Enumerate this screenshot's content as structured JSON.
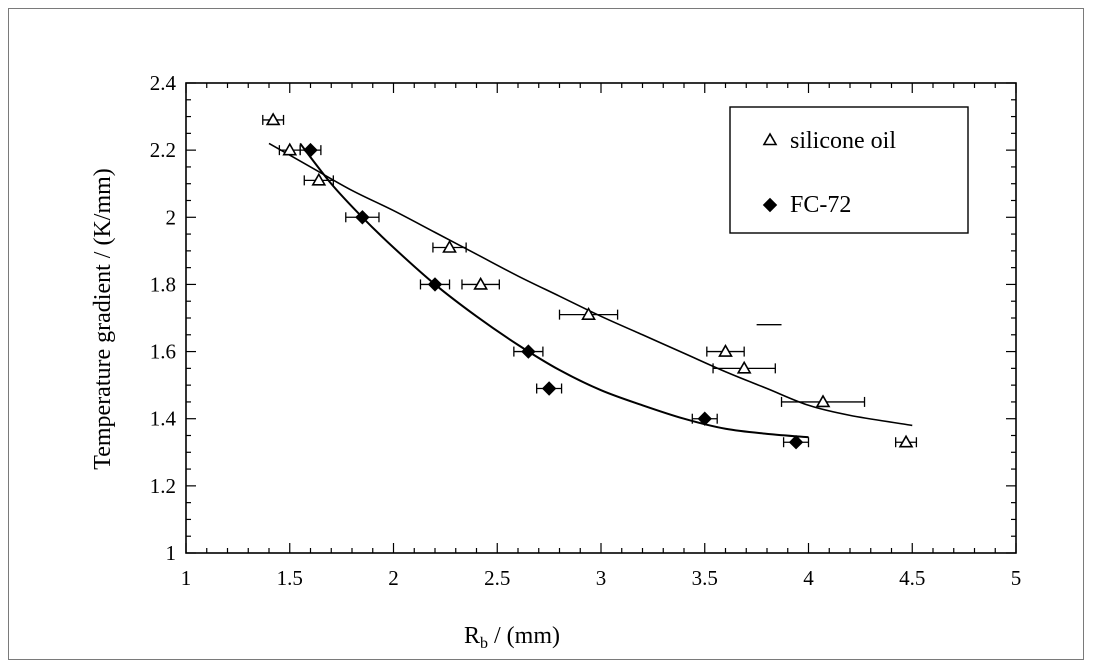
{
  "chart_data": {
    "type": "scatter",
    "title": "",
    "xlabel": "R",
    "xlabel_sub": "b",
    "xlabel_suffix": " / (mm)",
    "ylabel": "Temperature gradient / (K/mm)",
    "xlim": [
      1,
      5
    ],
    "ylim": [
      1,
      2.4
    ],
    "x_ticks": [
      1,
      1.5,
      2,
      2.5,
      3,
      3.5,
      4,
      4.5,
      5
    ],
    "x_tick_labels": [
      "1",
      "1.5",
      "2",
      "2.5",
      "3",
      "3.5",
      "4",
      "4.5",
      "5"
    ],
    "y_ticks": [
      1,
      1.2,
      1.4,
      1.6,
      1.8,
      2,
      2.2,
      2.4
    ],
    "y_tick_labels": [
      "1",
      "1.2",
      "1.4",
      "1.6",
      "1.8",
      "2",
      "2.2",
      "2.4"
    ],
    "grid": false,
    "legend_position": "top-right",
    "series": [
      {
        "name": "silicone oil",
        "marker": "open-triangle",
        "points": [
          {
            "x": 1.42,
            "y": 2.29,
            "xerr": 0.05
          },
          {
            "x": 1.5,
            "y": 2.2,
            "xerr": 0.05
          },
          {
            "x": 1.64,
            "y": 2.11,
            "xerr": 0.07
          },
          {
            "x": 2.27,
            "y": 1.91,
            "xerr": 0.08
          },
          {
            "x": 2.42,
            "y": 1.8,
            "xerr": 0.09
          },
          {
            "x": 2.94,
            "y": 1.71,
            "xerr": 0.14
          },
          {
            "x": 3.6,
            "y": 1.6,
            "xerr": 0.09
          },
          {
            "x": 3.69,
            "y": 1.55,
            "xerr": 0.15
          },
          {
            "x": 4.07,
            "y": 1.45,
            "xerr": 0.2
          },
          {
            "x": 4.47,
            "y": 1.33,
            "xerr": 0.05
          }
        ],
        "fit": [
          [
            1.4,
            2.22
          ],
          [
            1.6,
            2.15
          ],
          [
            1.8,
            2.08
          ],
          [
            2.0,
            2.02
          ],
          [
            2.2,
            1.955
          ],
          [
            2.4,
            1.89
          ],
          [
            2.6,
            1.825
          ],
          [
            2.8,
            1.765
          ],
          [
            3.0,
            1.705
          ],
          [
            3.2,
            1.65
          ],
          [
            3.4,
            1.595
          ],
          [
            3.6,
            1.54
          ],
          [
            3.8,
            1.49
          ],
          [
            4.0,
            1.44
          ],
          [
            4.2,
            1.41
          ],
          [
            4.5,
            1.38
          ]
        ]
      },
      {
        "name": "FC-72",
        "marker": "filled-diamond",
        "points": [
          {
            "x": 1.6,
            "y": 2.2,
            "xerr": 0.05
          },
          {
            "x": 1.85,
            "y": 2.0,
            "xerr": 0.08
          },
          {
            "x": 2.2,
            "y": 1.8,
            "xerr": 0.07
          },
          {
            "x": 2.65,
            "y": 1.6,
            "xerr": 0.07
          },
          {
            "x": 2.75,
            "y": 1.49,
            "xerr": 0.06
          },
          {
            "x": 3.5,
            "y": 1.4,
            "xerr": 0.06
          },
          {
            "x": 3.94,
            "y": 1.33,
            "xerr": 0.06
          }
        ],
        "fit": [
          [
            1.55,
            2.22
          ],
          [
            1.7,
            2.1
          ],
          [
            1.85,
            2.0
          ],
          [
            2.0,
            1.91
          ],
          [
            2.2,
            1.8
          ],
          [
            2.4,
            1.705
          ],
          [
            2.6,
            1.62
          ],
          [
            2.8,
            1.545
          ],
          [
            3.0,
            1.485
          ],
          [
            3.2,
            1.44
          ],
          [
            3.4,
            1.4
          ],
          [
            3.6,
            1.37
          ],
          [
            3.8,
            1.355
          ],
          [
            4.0,
            1.345
          ]
        ]
      }
    ]
  }
}
